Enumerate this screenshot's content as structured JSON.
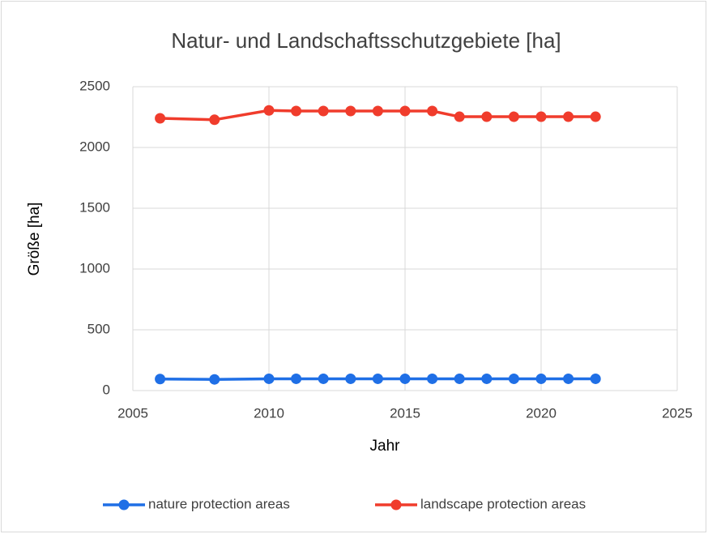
{
  "chart_data": {
    "type": "line",
    "title": "Natur- und Landschaftsschutzgebiete [ha]",
    "x_label": "Jahr",
    "y_label": "Größe [ha]",
    "x": [
      2006,
      2008,
      2010,
      2011,
      2012,
      2013,
      2014,
      2015,
      2016,
      2017,
      2018,
      2019,
      2020,
      2021,
      2022
    ],
    "series": [
      {
        "name": "nature protection areas",
        "color": "#1f6fe6",
        "values": [
          95,
          92,
          97,
          97,
          97,
          97,
          97,
          97,
          97,
          97,
          97,
          97,
          97,
          97,
          97
        ]
      },
      {
        "name": "landscape protection areas",
        "color": "#f03c2c",
        "values": [
          2240,
          2228,
          2305,
          2300,
          2300,
          2300,
          2300,
          2300,
          2300,
          2253,
          2253,
          2253,
          2253,
          2253,
          2253
        ]
      }
    ],
    "xlim": [
      2005,
      2025
    ],
    "xticks": [
      2005,
      2010,
      2015,
      2020,
      2025
    ],
    "ylim": [
      0,
      2500
    ],
    "yticks": [
      0,
      500,
      1000,
      1500,
      2000,
      2500
    ],
    "grid": true,
    "legend": "bottom"
  }
}
